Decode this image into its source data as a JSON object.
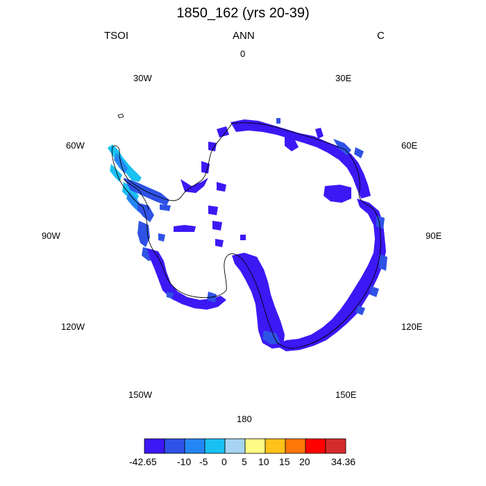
{
  "title": "1850_162 (yrs 20-39)",
  "header": {
    "left": "TSOI",
    "center": "ANN",
    "right": "C"
  },
  "longitude_labels": {
    "lon_0": "0",
    "lon_30e": "30E",
    "lon_60e": "60E",
    "lon_90e": "90E",
    "lon_120e": "120E",
    "lon_150e": "150E",
    "lon_180": "180",
    "lon_150w": "150W",
    "lon_120w": "120W",
    "lon_90w": "90W",
    "lon_60w": "60W",
    "lon_30w": "30W"
  },
  "colorbar": {
    "colors": [
      "#3c18f5",
      "#2f52e6",
      "#2486f5",
      "#19c0f2",
      "#a7d4f0",
      "#fefc84",
      "#fec21a",
      "#ff7708",
      "#ff0000",
      "#d42b2b"
    ],
    "labels": {
      "min": "-42.65",
      "m10": "-10",
      "m5": "-5",
      "z0": "0",
      "p5": "5",
      "p10": "10",
      "p15": "15",
      "p20": "20",
      "max": "34.36"
    }
  }
}
